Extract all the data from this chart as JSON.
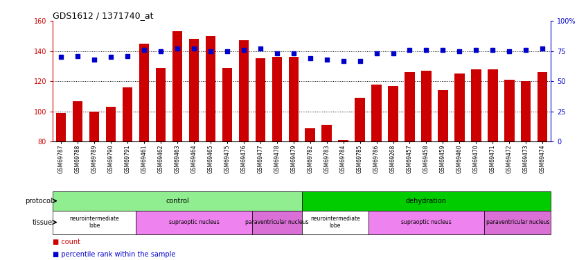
{
  "title": "GDS1612 / 1371740_at",
  "samples": [
    "GSM69787",
    "GSM69788",
    "GSM69789",
    "GSM69790",
    "GSM69791",
    "GSM69461",
    "GSM69462",
    "GSM69463",
    "GSM69464",
    "GSM69465",
    "GSM69475",
    "GSM69476",
    "GSM69477",
    "GSM69478",
    "GSM69479",
    "GSM69782",
    "GSM69783",
    "GSM69784",
    "GSM69785",
    "GSM69786",
    "GSM69268",
    "GSM69457",
    "GSM69458",
    "GSM69459",
    "GSM69460",
    "GSM69470",
    "GSM69471",
    "GSM69472",
    "GSM69473",
    "GSM69474"
  ],
  "bar_values": [
    99,
    107,
    100,
    103,
    116,
    145,
    129,
    153,
    148,
    150,
    129,
    147,
    135,
    136,
    136,
    89,
    91,
    81,
    109,
    118,
    117,
    126,
    127,
    114,
    125,
    128,
    128,
    121,
    120,
    126
  ],
  "dot_values": [
    70,
    71,
    68,
    70,
    71,
    76,
    75,
    77,
    77,
    75,
    75,
    76,
    77,
    73,
    73,
    69,
    68,
    67,
    67,
    73,
    73,
    76,
    76,
    76,
    75,
    76,
    76,
    75,
    76,
    77
  ],
  "ylim_left": [
    80,
    160
  ],
  "ylim_right": [
    0,
    100
  ],
  "yticks_left": [
    80,
    100,
    120,
    140,
    160
  ],
  "yticks_right": [
    0,
    25,
    50,
    75,
    100
  ],
  "bar_color": "#cc0000",
  "dot_color": "#0000cc",
  "protocol_groups": [
    {
      "label": "control",
      "start": 0,
      "end": 14,
      "color": "#90ee90"
    },
    {
      "label": "dehydration",
      "start": 15,
      "end": 29,
      "color": "#00cc00"
    }
  ],
  "tissue_groups": [
    {
      "label": "neurointermediate\nlobe",
      "start": 0,
      "end": 4,
      "color": "#ffffff"
    },
    {
      "label": "supraoptic nucleus",
      "start": 5,
      "end": 11,
      "color": "#ee82ee"
    },
    {
      "label": "paraventricular nucleus",
      "start": 12,
      "end": 14,
      "color": "#da70d6"
    },
    {
      "label": "neurointermediate\nlobe",
      "start": 15,
      "end": 18,
      "color": "#ffffff"
    },
    {
      "label": "supraoptic nucleus",
      "start": 19,
      "end": 25,
      "color": "#ee82ee"
    },
    {
      "label": "paraventricular nucleus",
      "start": 26,
      "end": 29,
      "color": "#da70d6"
    }
  ]
}
